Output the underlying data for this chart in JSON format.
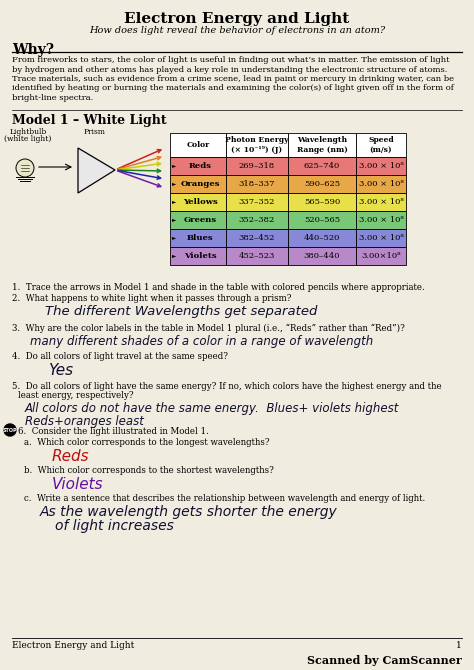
{
  "title": "Electron Energy and Light",
  "subtitle": "How does light reveal the behavior of electrons in an atom?",
  "bg_color": "#f0ece0",
  "why_heading": "Why?",
  "why_text": "From fireworks to stars, the color of light is useful in finding out what’s in matter. The emission of light by hydrogen and other atoms has played a key role in understanding the electronic structure of atoms. Trace materials, such as evidence from a crime scene, lead in paint or mercury in drinking water, can be identified by heating or burning the materials and examining the color(s) of light given off in the form of bright-line spectra.",
  "model_title": "Model 1 – White Light",
  "label_bulb": "Lightbulb",
  "label_bulb2": "(white light)",
  "label_prism": "Prism",
  "table_headers": [
    "Color",
    "Photon Energy\n(× 10⁻¹⁹) (J)",
    "Wavelength\nRange (nm)",
    "Speed\n(m/s)"
  ],
  "table_rows": [
    {
      "color": "Reds",
      "bg": "#e87878",
      "energy": "269–318",
      "wavelength": "625–740",
      "speed": "3.00 × 10⁸"
    },
    {
      "color": "Oranges",
      "bg": "#e8a848",
      "energy": "318–337",
      "wavelength": "590–625",
      "speed": "3.00 × 10⁸"
    },
    {
      "color": "Yellows",
      "bg": "#e8e048",
      "energy": "337–352",
      "wavelength": "565–590",
      "speed": "3.00 × 10⁸"
    },
    {
      "color": "Greens",
      "bg": "#78c878",
      "energy": "352–382",
      "wavelength": "520–565",
      "speed": "3.00 × 10⁸"
    },
    {
      "color": "Blues",
      "bg": "#8888d8",
      "energy": "382–452",
      "wavelength": "440–520",
      "speed": "3.00 × 10⁸"
    },
    {
      "color": "Violets",
      "bg": "#b888c8",
      "energy": "452–523",
      "wavelength": "380–440",
      "speed": "3.00×10⁸"
    }
  ],
  "q1": "1.  Trace the arrows in Model 1 and shade in the table with colored pencils where appropriate.",
  "q2": "2.  What happens to white light when it passes through a prism?",
  "a2": "The different Wavelengths get separated",
  "q3": "3.  Why are the color labels in the table in Model 1 plural (i.e., “Reds” rather than “Red”)?",
  "a3": "many different shades of a color in a range of wavelength",
  "q4": "4.  Do all colors of light travel at the same speed?",
  "a4": "Yes",
  "q5": "5.  Do all colors of light have the same energy? If no, which colors have the highest energy and the\n     least energy, respectively?",
  "a5a": "All colors do not have the same energy.  Blues+ violets highest",
  "a5b": "Reds+oranges least",
  "q6": "6.  Consider the light illustrated in Model 1.",
  "q6a": "a.  Which color corresponds to the longest wavelengths?",
  "a6a": "Reds",
  "q6b": "b.  Which color corresponds to the shortest wavelengths?",
  "a6b": "Violets",
  "q6c": "c.  Write a sentence that describes the relationship between wavelength and energy of light.",
  "a6c_l1": "As the wavelength gets shorter the energy",
  "a6c_l2": "of light increases",
  "footer_left": "Electron Energy and Light",
  "footer_page": "1",
  "footer_scanner": "Scanned by CamScanner",
  "ray_colors": [
    "#cc2020",
    "#dd8020",
    "#cccc00",
    "#208020",
    "#2020aa",
    "#7020a0"
  ],
  "white_color": "#ffffff",
  "black_color": "#000000",
  "handwriting_color": "#101030",
  "red_handwriting": "#bb1010",
  "purple_handwriting": "#6010a0"
}
